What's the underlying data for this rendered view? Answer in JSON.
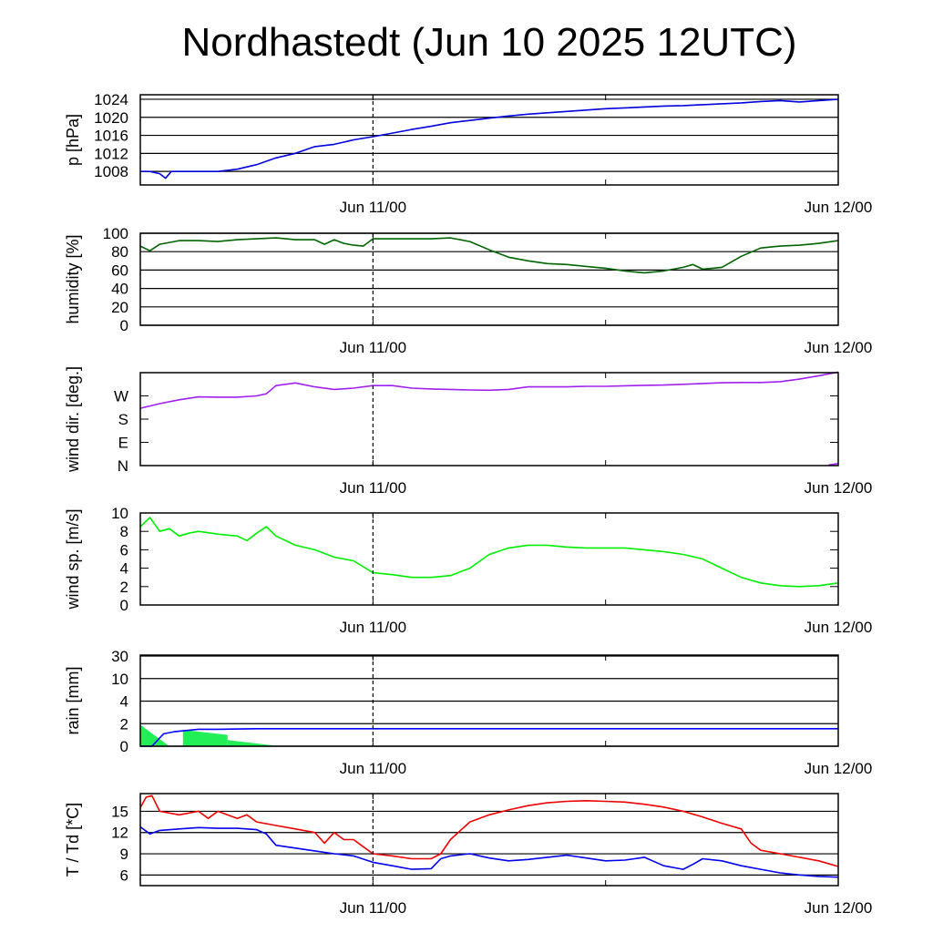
{
  "title": "Nordhastedt (Jun 10 2025 12UTC)",
  "colors": {
    "pressure": "#0000e0",
    "humidity": "#006400",
    "wind_dir": "#a020f0",
    "wind_speed": "#00ee00",
    "rain_cum": "#0000ff",
    "rain_bars": "#22ee55",
    "temp": "#ee0000",
    "dewpoint": "#0000ee"
  },
  "chart_data": [
    {
      "type": "line",
      "name": "pressure",
      "ylabel": "p [hPa]",
      "xticks": [
        "Jun 11/00",
        "Jun 12/00"
      ],
      "xlim": [
        0,
        36
      ],
      "ylim": [
        1005,
        1025
      ],
      "yticks": [
        1008,
        1012,
        1016,
        1020,
        1024
      ],
      "grid": true,
      "marker_x": 12,
      "series": [
        {
          "x": [
            0,
            0.5,
            1,
            1.3,
            1.6,
            2,
            2.5,
            3,
            4,
            5,
            6,
            7,
            8,
            9,
            10,
            11,
            12,
            13,
            14,
            15,
            16,
            17,
            18,
            19,
            20,
            21,
            22,
            23,
            24,
            25,
            26,
            27,
            28,
            29,
            30,
            31,
            32,
            33,
            34,
            35,
            36
          ],
          "values": [
            1008,
            1008,
            1007.5,
            1006.5,
            1008,
            1008,
            1008,
            1008,
            1008,
            1008.5,
            1009.5,
            1011,
            1012,
            1013.5,
            1014,
            1015,
            1015.7,
            1016.5,
            1017.3,
            1018,
            1018.8,
            1019.3,
            1019.8,
            1020.3,
            1020.7,
            1021,
            1021.3,
            1021.6,
            1021.9,
            1022.1,
            1022.3,
            1022.5,
            1022.6,
            1022.8,
            1023,
            1023.2,
            1023.5,
            1023.7,
            1023.4,
            1023.7,
            1024
          ]
        }
      ]
    },
    {
      "type": "line",
      "name": "humidity",
      "ylabel": "humidity [%]",
      "xticks": [
        "Jun 11/00",
        "Jun 12/00"
      ],
      "xlim": [
        0,
        36
      ],
      "ylim": [
        0,
        100
      ],
      "yticks": [
        0,
        20,
        40,
        60,
        80,
        100
      ],
      "grid": true,
      "marker_x": 12,
      "series": [
        {
          "x": [
            0,
            0.5,
            1,
            2,
            3,
            4,
            5,
            6,
            7,
            8,
            9,
            9.5,
            10,
            10.5,
            11,
            11.5,
            12,
            13,
            14,
            15,
            16,
            17,
            18,
            19,
            20,
            21,
            22,
            23,
            24,
            25,
            26,
            27,
            28,
            28.5,
            29,
            30,
            31,
            32,
            33,
            34,
            35,
            36
          ],
          "values": [
            86,
            81,
            88,
            92,
            92,
            91,
            93,
            94,
            95,
            93,
            93,
            88,
            93,
            89,
            87,
            86,
            94,
            94,
            94,
            94,
            95,
            91,
            82,
            74,
            70,
            67,
            66,
            64,
            62,
            59,
            57,
            59,
            63,
            66,
            61,
            63,
            75,
            84,
            86,
            87,
            89,
            92
          ]
        }
      ]
    },
    {
      "type": "line",
      "name": "wind direction",
      "ylabel": "wind dir. [deg.]",
      "xticks": [
        "Jun 11/00",
        "Jun 12/00"
      ],
      "xlim": [
        0,
        36
      ],
      "ylim": [
        0,
        360
      ],
      "ytick_labels": [
        "N",
        "E",
        "S",
        "W"
      ],
      "yticks": [
        0,
        90,
        180,
        270
      ],
      "grid": false,
      "marker_x": 12,
      "series": [
        {
          "x": [
            0,
            1,
            2,
            3,
            4,
            5,
            6,
            6.5,
            7,
            8,
            9,
            10,
            11,
            12,
            13,
            14,
            15,
            16,
            17,
            18,
            19,
            20,
            21,
            22,
            23,
            24,
            25,
            26,
            27,
            28,
            29,
            30,
            31,
            32,
            33,
            34,
            35,
            36
          ],
          "values": [
            222,
            240,
            255,
            266,
            265,
            265,
            270,
            278,
            310,
            320,
            305,
            295,
            300,
            310,
            310,
            300,
            297,
            295,
            293,
            292,
            295,
            305,
            305,
            305,
            307,
            307,
            309,
            311,
            312,
            315,
            318,
            321,
            322,
            322,
            325,
            335,
            348,
            362
          ]
        },
        {
          "x": [
            35.5,
            36
          ],
          "values": [
            2,
            8
          ]
        }
      ]
    },
    {
      "type": "line",
      "name": "wind speed",
      "ylabel": "wind sp. [m/s]",
      "xticks": [
        "Jun 11/00",
        "Jun 12/00"
      ],
      "xlim": [
        0,
        36
      ],
      "ylim": [
        0,
        10
      ],
      "yticks": [
        0,
        2,
        4,
        6,
        8,
        10
      ],
      "grid": false,
      "marker_x": 12,
      "series": [
        {
          "x": [
            0,
            0.5,
            1,
            1.5,
            2,
            2.5,
            3,
            4,
            5,
            5.5,
            6,
            6.5,
            7,
            8,
            9,
            10,
            11,
            12,
            13,
            14,
            15,
            16,
            17,
            18,
            19,
            20,
            21,
            22,
            23,
            24,
            25,
            26,
            27,
            28,
            29,
            30,
            31,
            32,
            33,
            34,
            35,
            36
          ],
          "values": [
            8.5,
            9.5,
            8,
            8.3,
            7.5,
            7.8,
            8,
            7.7,
            7.5,
            7.0,
            7.8,
            8.5,
            7.5,
            6.5,
            6.0,
            5.2,
            4.8,
            3.5,
            3.3,
            3.0,
            3.0,
            3.2,
            4.0,
            5.5,
            6.2,
            6.5,
            6.5,
            6.3,
            6.2,
            6.2,
            6.2,
            6.0,
            5.8,
            5.5,
            5.0,
            4.0,
            3.0,
            2.4,
            2.1,
            2.0,
            2.1,
            2.4
          ]
        }
      ]
    },
    {
      "type": "area",
      "name": "rain",
      "ylabel": "rain [mm]",
      "xticks": [
        "Jun 11/00",
        "Jun 12/00"
      ],
      "xlim": [
        0,
        36
      ],
      "yticks": [
        0,
        2,
        4,
        10,
        30
      ],
      "grid": true,
      "marker_x": 12,
      "series": [
        {
          "name": "accumulated",
          "x": [
            0,
            0.6,
            1.2,
            1.8,
            2.4,
            3,
            4,
            6,
            8,
            12,
            24,
            36
          ],
          "values": [
            0,
            0,
            1.1,
            1.3,
            1.4,
            1.5,
            1.5,
            1.55,
            1.55,
            1.55,
            1.55,
            1.55
          ]
        }
      ],
      "bars": [
        {
          "x0": 0,
          "x1": 1.5,
          "v0": 1.9,
          "v1": 0.0
        },
        {
          "x0": 2.2,
          "x1": 4.5,
          "v0": 1.45,
          "v1": 1.0
        },
        {
          "x0": 4.5,
          "x1": 7.2,
          "v0": 0.55,
          "v1": 0.0
        }
      ]
    },
    {
      "type": "line",
      "name": "temperature and dewpoint",
      "ylabel": "T / Td [*C]",
      "xticks": [
        "Jun 11/00",
        "Jun 12/00"
      ],
      "xlim": [
        0,
        36
      ],
      "ylim": [
        4.5,
        17.5
      ],
      "yticks": [
        6,
        9,
        12,
        15
      ],
      "grid": true,
      "marker_x": 12,
      "series": [
        {
          "name": "T",
          "x": [
            0,
            0.3,
            0.6,
            1,
            2,
            3,
            3.5,
            4,
            5,
            5.5,
            6,
            7,
            8,
            9,
            9.5,
            10,
            10.5,
            11,
            11.5,
            12,
            13,
            14,
            15,
            15.5,
            16,
            17,
            18,
            19,
            20,
            21,
            22,
            23,
            24,
            25,
            26,
            27,
            28,
            29,
            30,
            31,
            31.5,
            32,
            33,
            34,
            35,
            36
          ],
          "values": [
            15.5,
            17,
            17.2,
            15,
            14.5,
            15,
            14,
            15,
            14,
            14.5,
            13.5,
            13,
            12.5,
            12,
            10.5,
            12,
            11,
            11,
            10,
            9,
            8.7,
            8.3,
            8.3,
            9,
            11,
            13.5,
            14.5,
            15.2,
            15.8,
            16.2,
            16.4,
            16.5,
            16.4,
            16.3,
            16.0,
            15.6,
            15.0,
            14.2,
            13.3,
            12.5,
            10.5,
            9.5,
            9.0,
            8.5,
            8.0,
            7.2
          ]
        },
        {
          "name": "Td",
          "x": [
            0,
            0.5,
            1,
            2,
            3,
            4,
            5,
            6,
            6.5,
            7,
            8,
            9,
            10,
            11,
            12,
            13,
            14,
            15,
            15.5,
            16,
            17,
            18,
            19,
            20,
            21,
            22,
            23,
            24,
            25,
            26,
            27,
            28,
            28.5,
            29,
            30,
            31,
            32,
            33,
            34,
            35,
            36
          ],
          "values": [
            12.8,
            11.8,
            12.3,
            12.5,
            12.7,
            12.6,
            12.6,
            12.4,
            11.8,
            10.2,
            9.8,
            9.4,
            9.0,
            8.7,
            7.8,
            7.3,
            6.8,
            6.9,
            8.3,
            8.7,
            9.0,
            8.4,
            8.0,
            8.2,
            8.5,
            8.8,
            8.4,
            8.0,
            8.1,
            8.5,
            7.3,
            6.8,
            7.5,
            8.3,
            8.0,
            7.3,
            6.8,
            6.3,
            6.0,
            5.8,
            5.7
          ]
        }
      ]
    }
  ]
}
